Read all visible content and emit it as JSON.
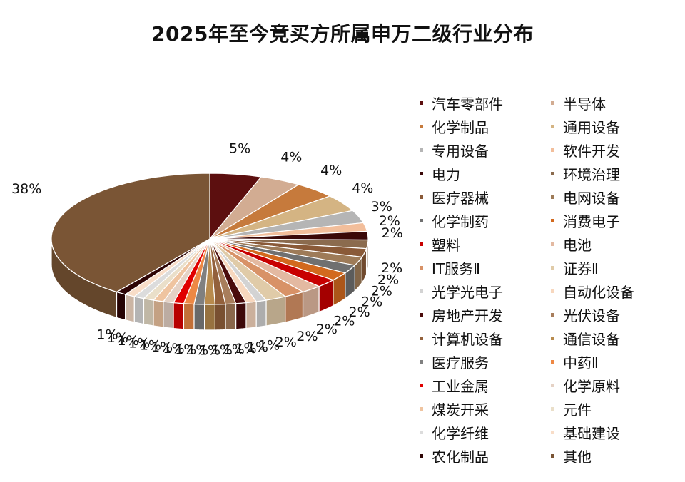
{
  "chart_data": {
    "type": "pie",
    "title": "2025年至今竞买方所属申万二级行业分布",
    "unit": "%",
    "legend_position": "right",
    "slices": [
      {
        "name": "汽车零部件",
        "value": 5,
        "label": "5%",
        "color": "#5C0F0F"
      },
      {
        "name": "半导体",
        "value": 4,
        "label": "4%",
        "color": "#D2AC92"
      },
      {
        "name": "化学制品",
        "value": 4,
        "label": "4%",
        "color": "#C67A3C"
      },
      {
        "name": "通用设备",
        "value": 4,
        "label": "4%",
        "color": "#D4B483"
      },
      {
        "name": "专用设备",
        "value": 3,
        "label": "3%",
        "color": "#B5B5B5"
      },
      {
        "name": "软件开发",
        "value": 2,
        "label": "2%",
        "color": "#F2BE9B"
      },
      {
        "name": "电力",
        "value": 2,
        "label": "2%",
        "color": "#3A0808"
      },
      {
        "name": "环境治理",
        "value": 2,
        "label": "2%",
        "color": "#8B6B4E"
      },
      {
        "name": "医疗器械",
        "value": 2,
        "label": "2%",
        "color": "#8A5A38"
      },
      {
        "name": "电网设备",
        "value": 2,
        "label": "2%",
        "color": "#9E7B58"
      },
      {
        "name": "化学制药",
        "value": 2,
        "label": "2%",
        "color": "#707070"
      },
      {
        "name": "消费电子",
        "value": 2,
        "label": "2%",
        "color": "#D2691E"
      },
      {
        "name": "塑料",
        "value": 2,
        "label": "2%",
        "color": "#C80000"
      },
      {
        "name": "电池",
        "value": 2,
        "label": "2%",
        "color": "#E3B9A1"
      },
      {
        "name": "IT服务Ⅱ",
        "value": 2,
        "label": "2%",
        "color": "#D89267"
      },
      {
        "name": "证券Ⅱ",
        "value": 2,
        "label": "2%",
        "color": "#E0CBA8"
      },
      {
        "name": "光学光电子",
        "value": 1,
        "label": "1%",
        "color": "#D3D3D3"
      },
      {
        "name": "自动化设备",
        "value": 1,
        "label": "1%",
        "color": "#F7D7BE"
      },
      {
        "name": "房地产开发",
        "value": 1,
        "label": "1%",
        "color": "#4A0B0B"
      },
      {
        "name": "光伏设备",
        "value": 1,
        "label": "1%",
        "color": "#A87E5C"
      },
      {
        "name": "计算机设备",
        "value": 1,
        "label": "1%",
        "color": "#93613C"
      },
      {
        "name": "通信设备",
        "value": 1,
        "label": "1%",
        "color": "#B88B4E"
      },
      {
        "name": "医疗服务",
        "value": 1,
        "label": "1%",
        "color": "#808080"
      },
      {
        "name": "中药Ⅱ",
        "value": 1,
        "label": "1%",
        "color": "#EE8844"
      },
      {
        "name": "工业金属",
        "value": 1,
        "label": "1%",
        "color": "#E00000"
      },
      {
        "name": "化学原料",
        "value": 1,
        "label": "1%",
        "color": "#E5D2C5"
      },
      {
        "name": "煤炭开采",
        "value": 1,
        "label": "1%",
        "color": "#EFC4A0"
      },
      {
        "name": "元件",
        "value": 1,
        "label": "1%",
        "color": "#EADFC9"
      },
      {
        "name": "化学纤维",
        "value": 1,
        "label": "1%",
        "color": "#DCDCDC"
      },
      {
        "name": "基础建设",
        "value": 1,
        "label": "1%",
        "color": "#F8DDC8"
      },
      {
        "name": "农化制品",
        "value": 1,
        "label": "1%",
        "color": "#2E0505"
      },
      {
        "name": "其他",
        "value": 38,
        "label": "38%",
        "color": "#7A5535"
      }
    ]
  }
}
